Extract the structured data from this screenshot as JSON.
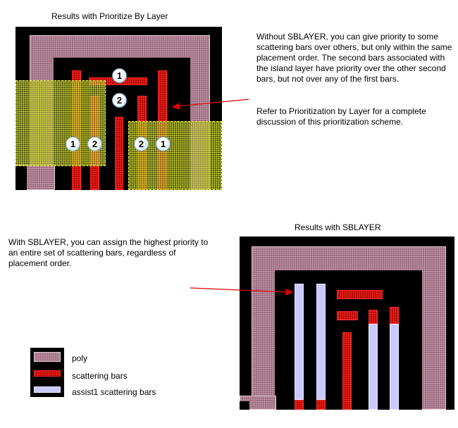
{
  "top_caption": "Results with Prioritize By Layer",
  "top_text": "Without SBLAYER, you can give priority to some scattering bars over others, but only within the same placement order. The second bars associated with the island layer have priority over the other second bars, but not over any of the first bars.",
  "top_text_2": "Refer to Prioritization by Layer for a complete discussion of this prioritization scheme.",
  "bottom_caption": "Results with SBLAYER",
  "bottom_text": "With SBLAYER, you can assign the highest priority to an entire set of scattering bars, regardless of placement order.",
  "badges": [
    "1",
    "2",
    "1",
    "2",
    "2",
    "1"
  ],
  "legend": [
    {
      "label": "poly",
      "icon": "poly-swatch"
    },
    {
      "label": "scattering bars",
      "icon": "scattering-bar-swatch"
    },
    {
      "label": "assist1 scattering bars",
      "icon": "assist1-swatch"
    }
  ],
  "colors": {
    "poly": "#9a6a7e",
    "scattering_bars": "#b00000",
    "assist1": "#c9c9ff",
    "island": "#b8c02a",
    "arrow": "#e00000"
  }
}
